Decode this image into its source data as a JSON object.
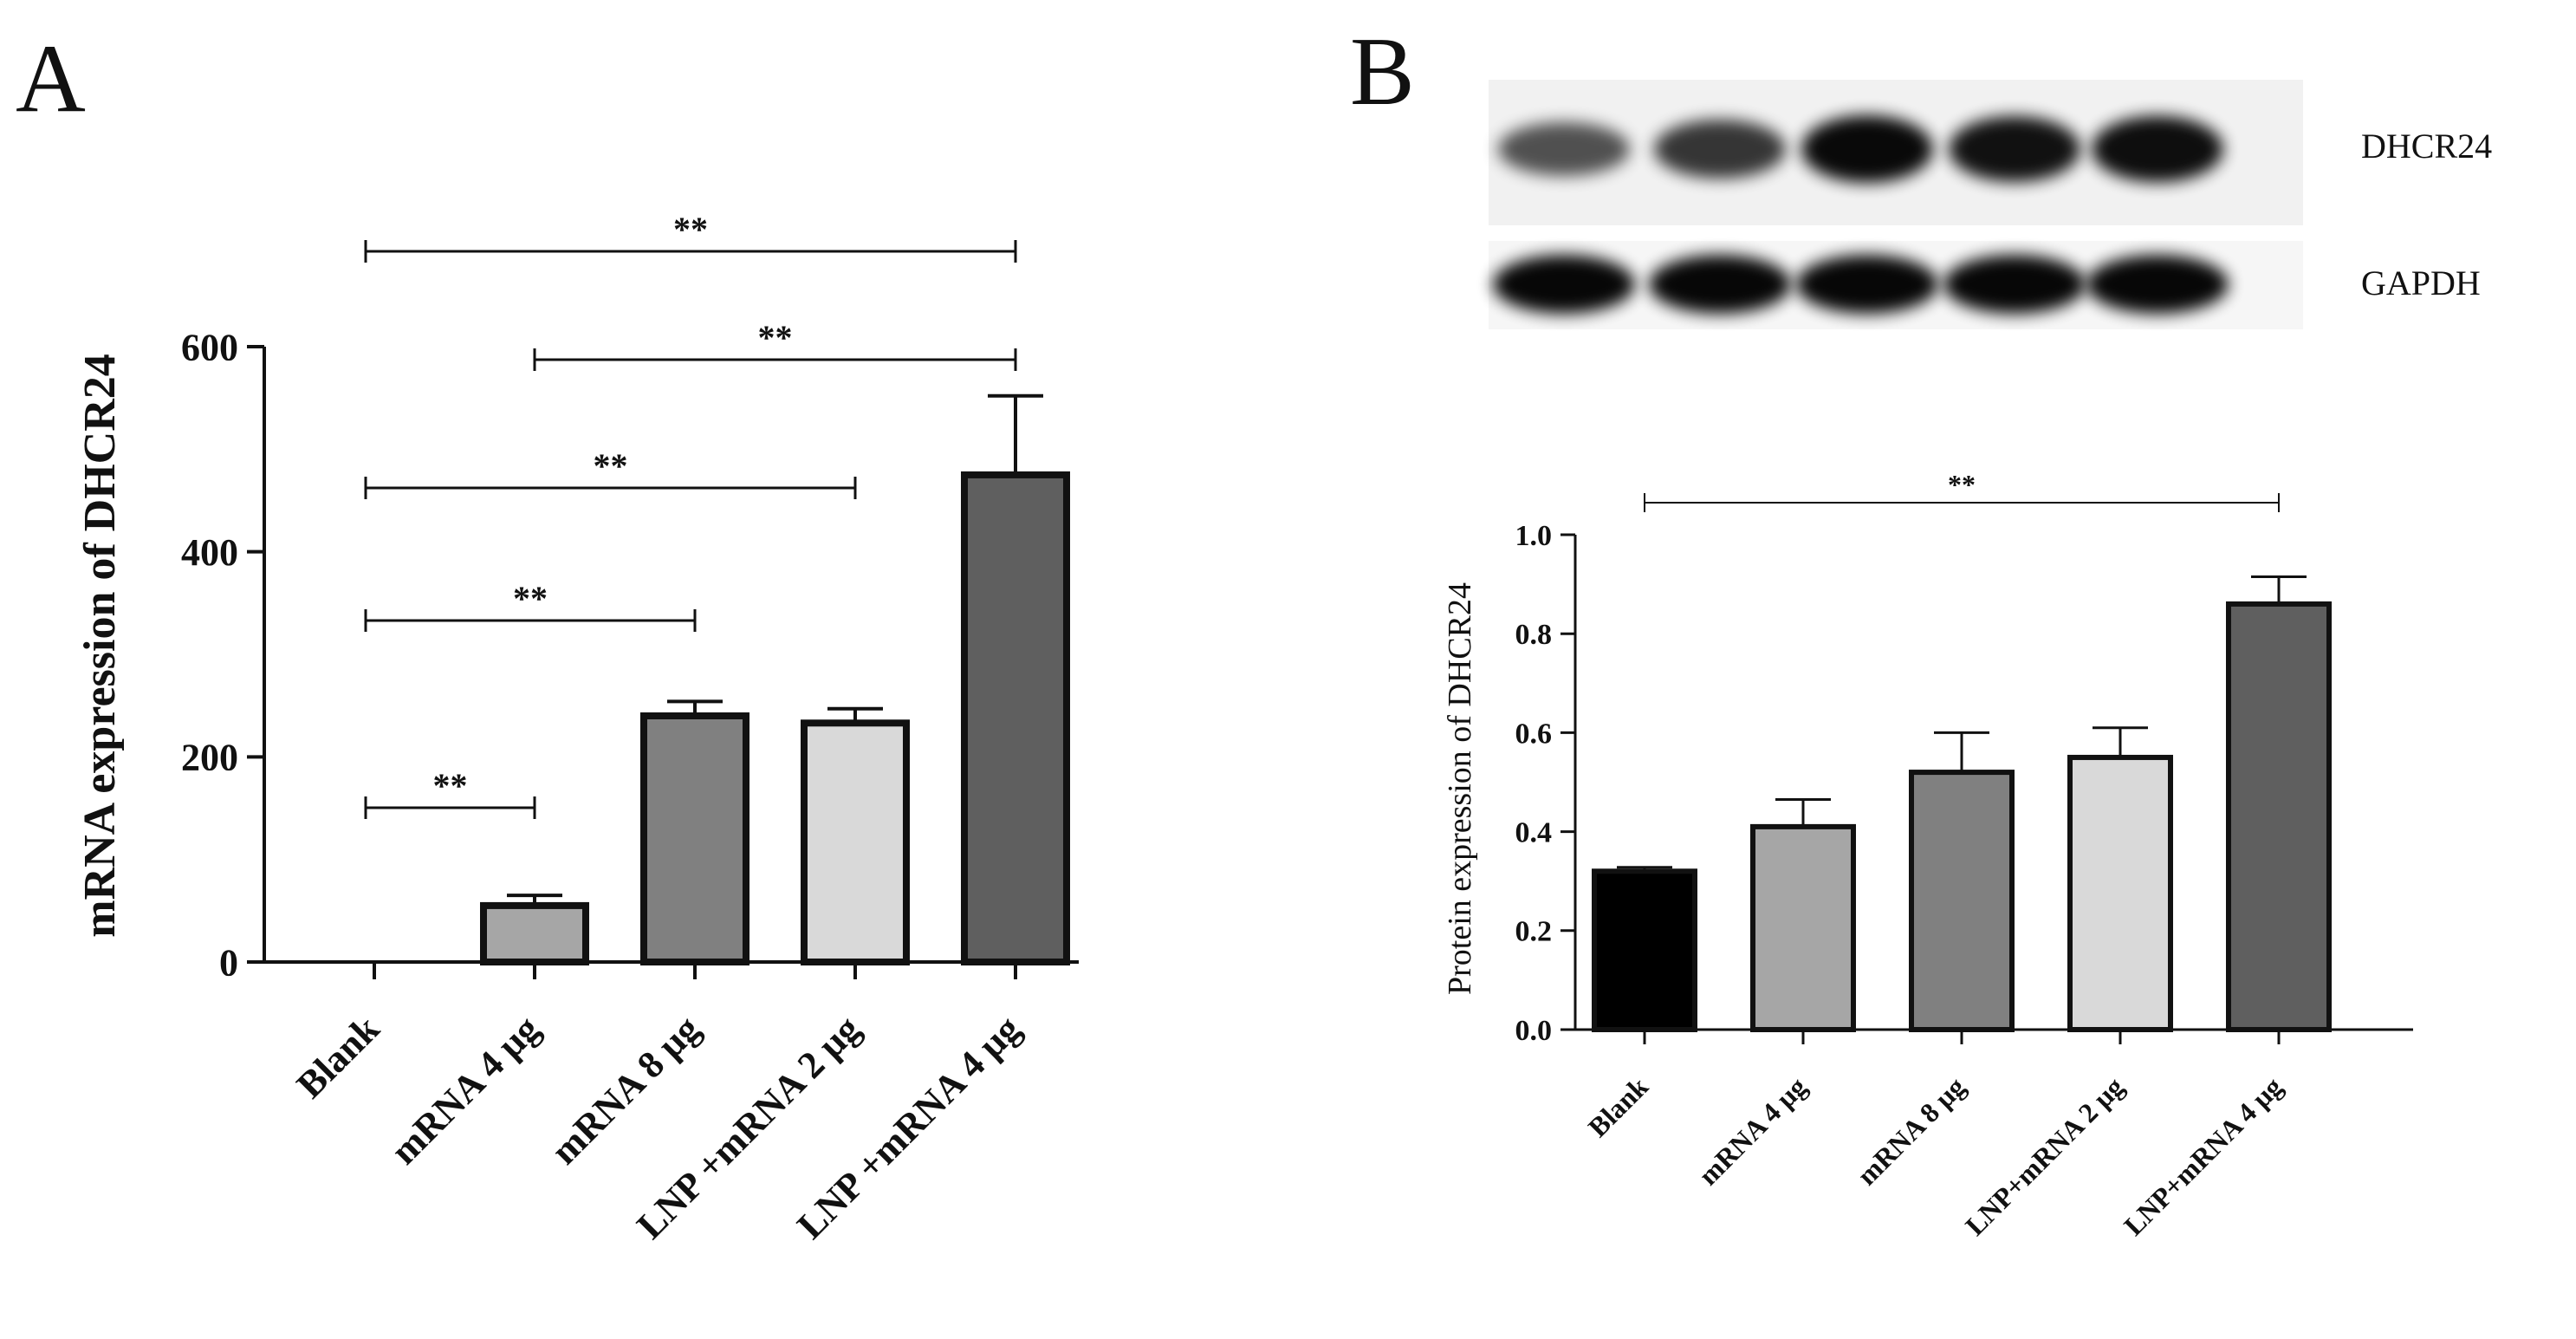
{
  "panels": {
    "a_letter": "A",
    "b_letter": "B"
  },
  "blot": {
    "labels": [
      "DHCR24",
      "GAPDH"
    ],
    "dhcr24_band_strength": [
      0.55,
      0.7,
      0.95,
      0.9,
      0.92
    ],
    "gapdh_band_strength": [
      1.0,
      1.0,
      1.0,
      1.0,
      1.0
    ]
  },
  "colors": {
    "blank": "#000000",
    "mrna_4": "#a6a6a6",
    "mrna_8": "#808080",
    "lnp_2": "#d9d9d9",
    "lnp_4": "#5f5f5f",
    "axis": "#111111"
  },
  "chart_data": [
    {
      "type": "bar",
      "panel": "A",
      "categories": [
        "Blank",
        "mRNA  4 μg",
        "mRNA 8 μg",
        "LNP +mRNA 2 μg",
        "LNP +mRNA 4 μg"
      ],
      "values": [
        0,
        55,
        240,
        233,
        475
      ],
      "errors": [
        0,
        10,
        14,
        14,
        77
      ],
      "ylabel": "mRNA expression of DHCR24",
      "ylim": [
        0,
        600
      ],
      "yticks": [
        "0",
        "200",
        "400",
        "600"
      ],
      "significance": [
        {
          "from": 0,
          "to": 1,
          "label": "**"
        },
        {
          "from": 0,
          "to": 2,
          "label": "**"
        },
        {
          "from": 0,
          "to": 3,
          "label": "**"
        },
        {
          "from": 1,
          "to": 4,
          "label": "**"
        },
        {
          "from": 0,
          "to": 4,
          "label": "**"
        }
      ]
    },
    {
      "type": "bar",
      "panel": "B",
      "categories": [
        "Blank",
        "mRNA  4 μg",
        "mRNA  8 μg",
        "LNP+mRNA   2 μg",
        "LNP+mRNA   4 μg"
      ],
      "values": [
        0.32,
        0.41,
        0.52,
        0.55,
        0.86
      ],
      "errors": [
        0.008,
        0.055,
        0.08,
        0.06,
        0.055
      ],
      "ylabel": "Protein expression of DHCR24",
      "ylim": [
        0,
        1.0
      ],
      "yticks": [
        "0.0",
        "0.2",
        "0.4",
        "0.6",
        "0.8",
        "1.0"
      ],
      "significance": [
        {
          "from": 0,
          "to": 4,
          "label": "**"
        }
      ]
    }
  ]
}
